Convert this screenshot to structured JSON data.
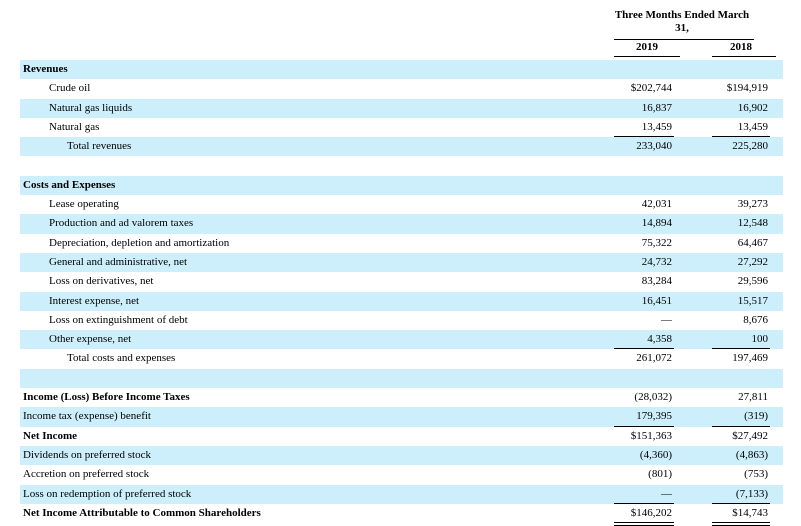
{
  "header": {
    "period_label": "Three Months Ended March 31,",
    "col1": "2019",
    "col2": "2018"
  },
  "rows": [
    {
      "label": "Revenues",
      "level": 1,
      "bold": true,
      "v1": "",
      "v2": "",
      "shade": true
    },
    {
      "label": "Crude oil",
      "level": 2,
      "v1": "$202,744",
      "v2": "$194,919",
      "shade": false
    },
    {
      "label": "Natural gas liquids",
      "level": 2,
      "v1": "16,837",
      "v2": "16,902",
      "shade": true
    },
    {
      "label": "Natural gas",
      "level": 2,
      "v1": "13,459",
      "v2": "13,459",
      "shade": false,
      "rule_below": true
    },
    {
      "label": "Total revenues",
      "level": 3,
      "v1": "233,040",
      "v2": "225,280",
      "shade": true
    },
    {
      "label": "",
      "level": 1,
      "v1": "",
      "v2": "",
      "shade": false
    },
    {
      "label": "Costs and Expenses",
      "level": 1,
      "bold": true,
      "v1": "",
      "v2": "",
      "shade": true
    },
    {
      "label": "Lease operating",
      "level": 2,
      "v1": "42,031",
      "v2": "39,273",
      "shade": false
    },
    {
      "label": "Production and ad valorem taxes",
      "level": 2,
      "v1": "14,894",
      "v2": "12,548",
      "shade": true
    },
    {
      "label": "Depreciation, depletion and amortization",
      "level": 2,
      "v1": "75,322",
      "v2": "64,467",
      "shade": false
    },
    {
      "label": "General and administrative, net",
      "level": 2,
      "v1": "24,732",
      "v2": "27,292",
      "shade": true
    },
    {
      "label": "Loss on derivatives, net",
      "level": 2,
      "v1": "83,284",
      "v2": "29,596",
      "shade": false
    },
    {
      "label": "Interest expense, net",
      "level": 2,
      "v1": "16,451",
      "v2": "15,517",
      "shade": true
    },
    {
      "label": "Loss on extinguishment of debt",
      "level": 2,
      "v1": "—",
      "v2": "8,676",
      "shade": false
    },
    {
      "label": "Other expense, net",
      "level": 2,
      "v1": "4,358",
      "v2": "100",
      "shade": true,
      "rule_below": true
    },
    {
      "label": "Total costs and expenses",
      "level": 3,
      "v1": "261,072",
      "v2": "197,469",
      "shade": false
    },
    {
      "label": "",
      "level": 1,
      "v1": "",
      "v2": "",
      "shade": true
    },
    {
      "label": "Income (Loss) Before Income Taxes",
      "level": 1,
      "bold": true,
      "v1": "(28,032)",
      "v2": "27,811",
      "shade": false
    },
    {
      "label": "Income tax (expense) benefit",
      "level": 1,
      "v1": "179,395",
      "v2": "(319)",
      "shade": true,
      "rule_below": true
    },
    {
      "label": "Net Income",
      "level": 1,
      "bold": true,
      "v1": "$151,363",
      "v2": "$27,492",
      "shade": false
    },
    {
      "label": "Dividends on preferred stock",
      "level": 1,
      "v1": "(4,360)",
      "v2": "(4,863)",
      "shade": true
    },
    {
      "label": "Accretion on preferred stock",
      "level": 1,
      "v1": "(801)",
      "v2": "(753)",
      "shade": false
    },
    {
      "label": "Loss on redemption of preferred stock",
      "level": 1,
      "v1": "—",
      "v2": "(7,133)",
      "shade": true,
      "rule_below": true
    },
    {
      "label": "Net Income Attributable to Common Shareholders",
      "level": 1,
      "bold": true,
      "v1": "$146,202",
      "v2": "$14,743",
      "shade": false,
      "double_below": true
    }
  ]
}
